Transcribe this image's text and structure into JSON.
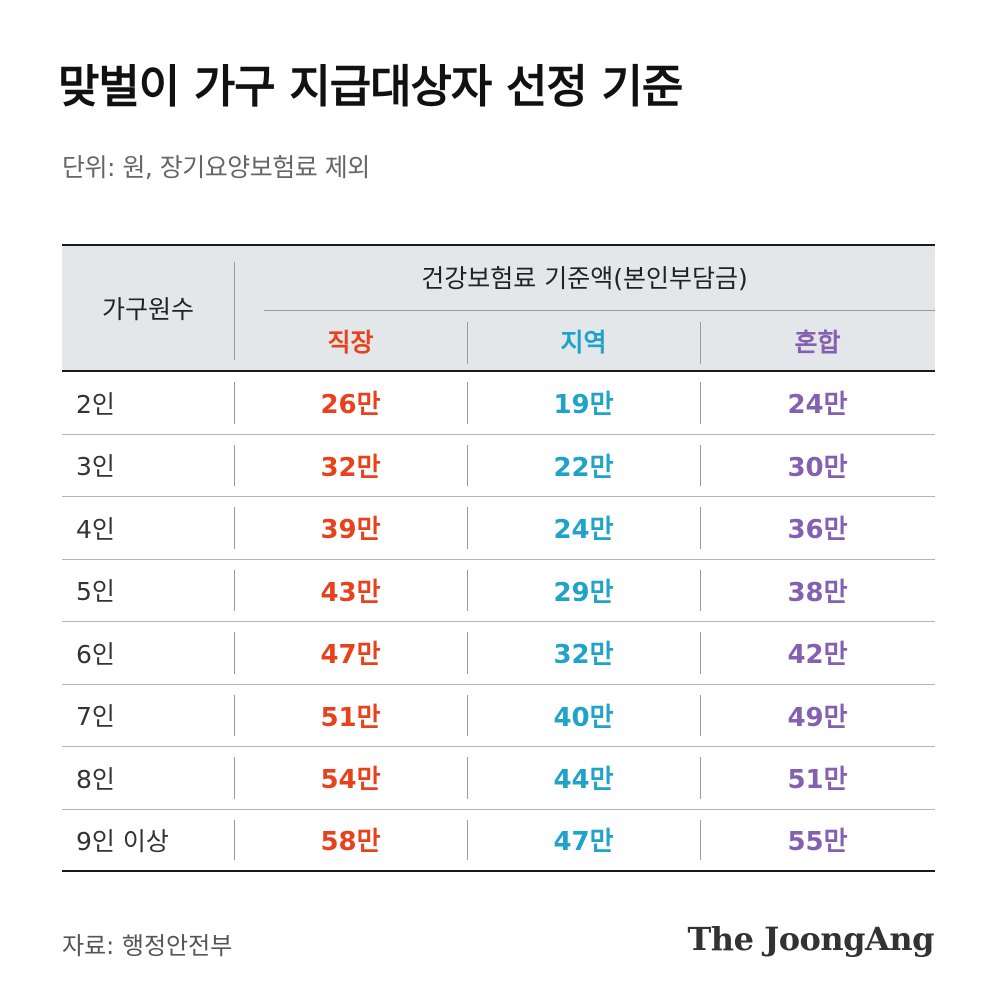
{
  "title": "맞벌이 가구 지급대상자 선정 기준",
  "subtitle": "단위: 원, 장기요양보험료 제외",
  "source": "자료: 행정안전부",
  "brand": "The JoongAng",
  "colors": {
    "workplace": "#e8421c",
    "regional": "#20a3c8",
    "mixed": "#8560b0"
  },
  "chart_data": {
    "type": "table",
    "title": "맞벌이 가구 지급대상자 선정 기준",
    "header_row_label": "가구원수",
    "group_header": "건강보험료 기준액(본인부담금)",
    "columns": [
      "직장",
      "지역",
      "혼합"
    ],
    "rows": [
      {
        "label": "2인",
        "values": [
          "26만",
          "19만",
          "24만"
        ]
      },
      {
        "label": "3인",
        "values": [
          "32만",
          "22만",
          "30만"
        ]
      },
      {
        "label": "4인",
        "values": [
          "39만",
          "24만",
          "36만"
        ]
      },
      {
        "label": "5인",
        "values": [
          "43만",
          "29만",
          "38만"
        ]
      },
      {
        "label": "6인",
        "values": [
          "47만",
          "32만",
          "42만"
        ]
      },
      {
        "label": "7인",
        "values": [
          "51만",
          "40만",
          "49만"
        ]
      },
      {
        "label": "8인",
        "values": [
          "54만",
          "44만",
          "51만"
        ]
      },
      {
        "label": "9인 이상",
        "values": [
          "58만",
          "47만",
          "55만"
        ]
      }
    ]
  }
}
